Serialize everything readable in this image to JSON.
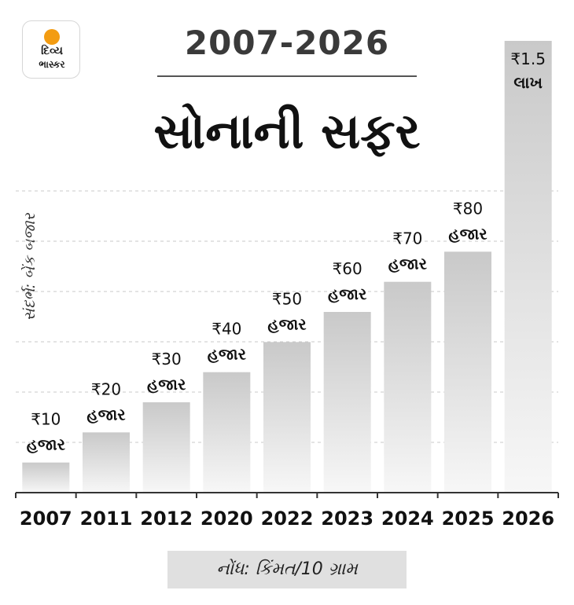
{
  "logo": {
    "line1": "દિવ્ય",
    "line2": "ભાસ્કર"
  },
  "header": {
    "years": "2007-2026",
    "title": "સોનાની સફર"
  },
  "source_text": "સંદર્ભ: બેંક બજાર",
  "note_text": "નોંધ: કિંમત/10 ગ્રામ",
  "colors": {
    "bar_top": "#c9c9c9",
    "bar_bottom": "#f7f7f7",
    "grid": "#c8c8c8",
    "axis": "#333333",
    "sun": "#f39c12"
  },
  "chart_data": {
    "type": "bar",
    "categories": [
      "2007",
      "2011",
      "2012",
      "2020",
      "2022",
      "2023",
      "2024",
      "2025",
      "2026"
    ],
    "values": [
      10000,
      20000,
      30000,
      40000,
      50000,
      60000,
      70000,
      80000,
      150000
    ],
    "data_labels": [
      [
        "₹10",
        "હજાર"
      ],
      [
        "₹20",
        "હજાર"
      ],
      [
        "₹30",
        "હજાર"
      ],
      [
        "₹40",
        "હજાર"
      ],
      [
        "₹50",
        "હજાર"
      ],
      [
        "₹60",
        "હજાર"
      ],
      [
        "₹70",
        "હજાર"
      ],
      [
        "₹80",
        "હજાર"
      ],
      [
        "₹1.5",
        "લાખ"
      ]
    ],
    "ylim": [
      0,
      150000
    ],
    "grid": true,
    "legend": "none"
  }
}
